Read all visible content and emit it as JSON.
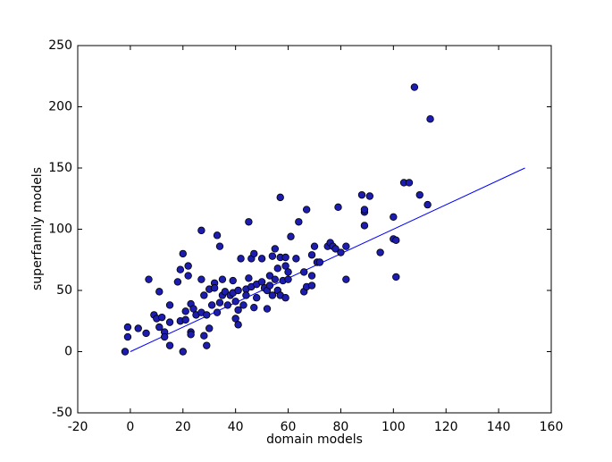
{
  "chart_data": {
    "type": "scatter",
    "xlabel": "domain models",
    "ylabel": "superfamily models",
    "xlim": [
      -20,
      160
    ],
    "ylim": [
      -50,
      250
    ],
    "xticks": [
      -20,
      0,
      20,
      40,
      60,
      80,
      100,
      120,
      140,
      160
    ],
    "yticks": [
      -50,
      0,
      50,
      100,
      150,
      200,
      250
    ],
    "color": "#1c1cb0",
    "x": [
      -2,
      -1,
      -1,
      3,
      7,
      6,
      9,
      10,
      11,
      11,
      12,
      13,
      13,
      15,
      15,
      15,
      18,
      19,
      19,
      20,
      20,
      21,
      21,
      22,
      22,
      23,
      23,
      23,
      24,
      25,
      27,
      27,
      27,
      28,
      28,
      29,
      29,
      30,
      30,
      31,
      32,
      32,
      33,
      34,
      33,
      34,
      35,
      35,
      36,
      37,
      38,
      39,
      39,
      40,
      40,
      41,
      41,
      41,
      42,
      43,
      44,
      44,
      45,
      45,
      46,
      46,
      47,
      47,
      48,
      48,
      50,
      50,
      51,
      52,
      52,
      53,
      53,
      54,
      54,
      55,
      55,
      56,
      56,
      57,
      57,
      57,
      58,
      59,
      59,
      59,
      60,
      60,
      61,
      63,
      64,
      66,
      66,
      67,
      67,
      69,
      69,
      69,
      70,
      71,
      72,
      75,
      76,
      77,
      78,
      79,
      80,
      82,
      82,
      88,
      89,
      89,
      89,
      91,
      95,
      100,
      100,
      101,
      101,
      104,
      106,
      108,
      110,
      113,
      114
    ],
    "y": [
      0,
      20,
      12,
      19,
      59,
      15,
      30,
      27,
      49,
      20,
      28,
      16,
      12,
      38,
      24,
      5,
      57,
      67,
      25,
      80,
      0,
      26,
      33,
      62,
      70,
      16,
      14,
      39,
      35,
      30,
      99,
      59,
      32,
      46,
      13,
      5,
      30,
      19,
      51,
      38,
      56,
      52,
      95,
      86,
      32,
      40,
      59,
      46,
      49,
      38,
      46,
      48,
      58,
      41,
      27,
      50,
      34,
      22,
      76,
      38,
      51,
      46,
      106,
      60,
      53,
      76,
      80,
      36,
      55,
      44,
      57,
      76,
      52,
      50,
      35,
      54,
      62,
      78,
      46,
      59,
      84,
      50,
      68,
      77,
      126,
      46,
      58,
      70,
      77,
      44,
      65,
      59,
      94,
      76,
      106,
      65,
      49,
      116,
      53,
      79,
      54,
      62,
      86,
      73,
      73,
      86,
      89,
      86,
      84,
      118,
      81,
      86,
      59,
      128,
      114,
      116,
      103,
      127,
      81,
      110,
      92,
      91,
      61,
      138,
      138,
      216,
      128,
      120,
      190
    ],
    "lines": [
      {
        "x": [
          0,
          150
        ],
        "values": [
          0,
          150
        ],
        "color": "#0000ff"
      }
    ]
  }
}
